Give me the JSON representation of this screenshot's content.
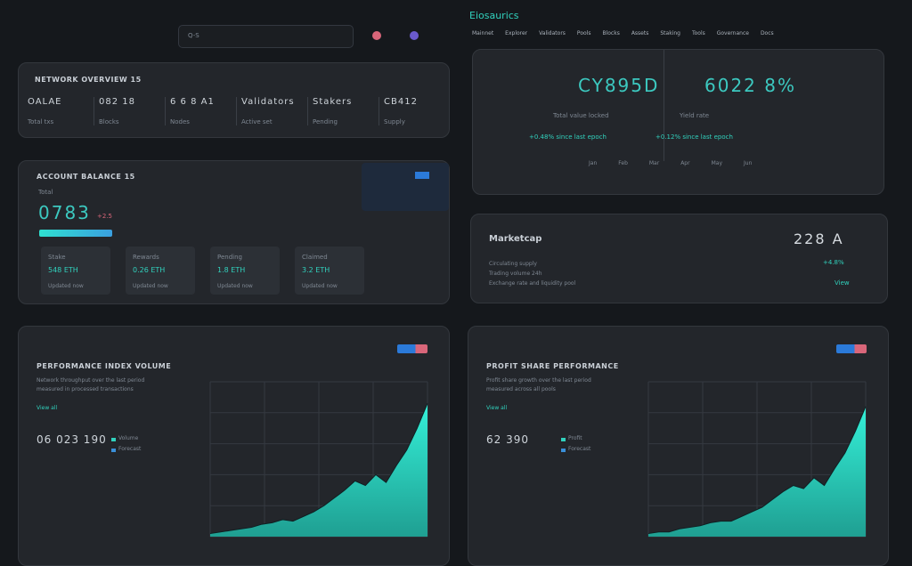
{
  "header": {
    "brand": "Eiosaurics",
    "search": "Q-S",
    "nav": [
      "Mainnet",
      "Explorer",
      "Validators",
      "Pools",
      "Blocks",
      "Assets",
      "Staking",
      "Tools",
      "Governance",
      "Docs"
    ]
  },
  "overview": {
    "title": "NETWORK OVERVIEW 15",
    "stats": [
      {
        "value": "OALAE",
        "label": "Total txs"
      },
      {
        "value": "082 18",
        "label": "Blocks"
      },
      {
        "value": "6 6 8 A1",
        "label": "Nodes"
      },
      {
        "value": "Validators",
        "label": "Active set"
      },
      {
        "value": "Stakers",
        "label": "Pending"
      },
      {
        "value": "CB412",
        "label": "Supply"
      }
    ]
  },
  "balance": {
    "title": "ACCOUNT BALANCE 15",
    "subtitle": "Total",
    "value": "0783",
    "change": "+2.5",
    "cards": [
      {
        "label": "Stake",
        "value": "548 ETH",
        "sub": "Updated now"
      },
      {
        "label": "Rewards",
        "value": "0.26 ETH",
        "sub": "Updated now"
      },
      {
        "label": "Pending",
        "value": "1.8 ETH",
        "sub": "Updated now"
      },
      {
        "label": "Claimed",
        "value": "3.2 ETH",
        "sub": "Updated now"
      }
    ]
  },
  "summary": {
    "items": [
      {
        "value": "CY895D",
        "label": "Total value locked",
        "detail": "+0.48% since last epoch"
      },
      {
        "value": "6022 8%",
        "label": "Yield rate",
        "detail": "+0.12% since last epoch"
      }
    ],
    "axis": [
      "Jan",
      "Feb",
      "Mar",
      "Apr",
      "May",
      "Jun"
    ]
  },
  "market": {
    "title": "Marketcap",
    "value": "228 A",
    "change": "+4.8%",
    "rows": [
      "Circulating supply",
      "Trading volume 24h",
      "Exchange rate and liquidity pool"
    ],
    "link": "View"
  },
  "charts": [
    {
      "title": "PERFORMANCE INDEX VOLUME",
      "description": [
        "Network throughput over the last period",
        "measured in processed transactions"
      ],
      "link": "View all",
      "value": "06 023 190",
      "legend": [
        "Volume",
        "Forecast"
      ],
      "ylim": [
        0,
        100
      ],
      "values": [
        2,
        3,
        4,
        5,
        6,
        8,
        9,
        11,
        10,
        13,
        16,
        20,
        25,
        30,
        36,
        33,
        40,
        35,
        46,
        56,
        70,
        86
      ]
    },
    {
      "title": "PROFIT SHARE PERFORMANCE",
      "description": [
        "Profit share growth over the last period",
        "measured across all pools"
      ],
      "link": "View all",
      "value": "62 390",
      "legend": [
        "Profit",
        "Forecast"
      ],
      "ylim": [
        0,
        100
      ],
      "values": [
        2,
        3,
        3,
        5,
        6,
        7,
        9,
        10,
        10,
        13,
        16,
        19,
        24,
        29,
        33,
        31,
        38,
        33,
        44,
        54,
        68,
        84
      ]
    }
  ]
}
